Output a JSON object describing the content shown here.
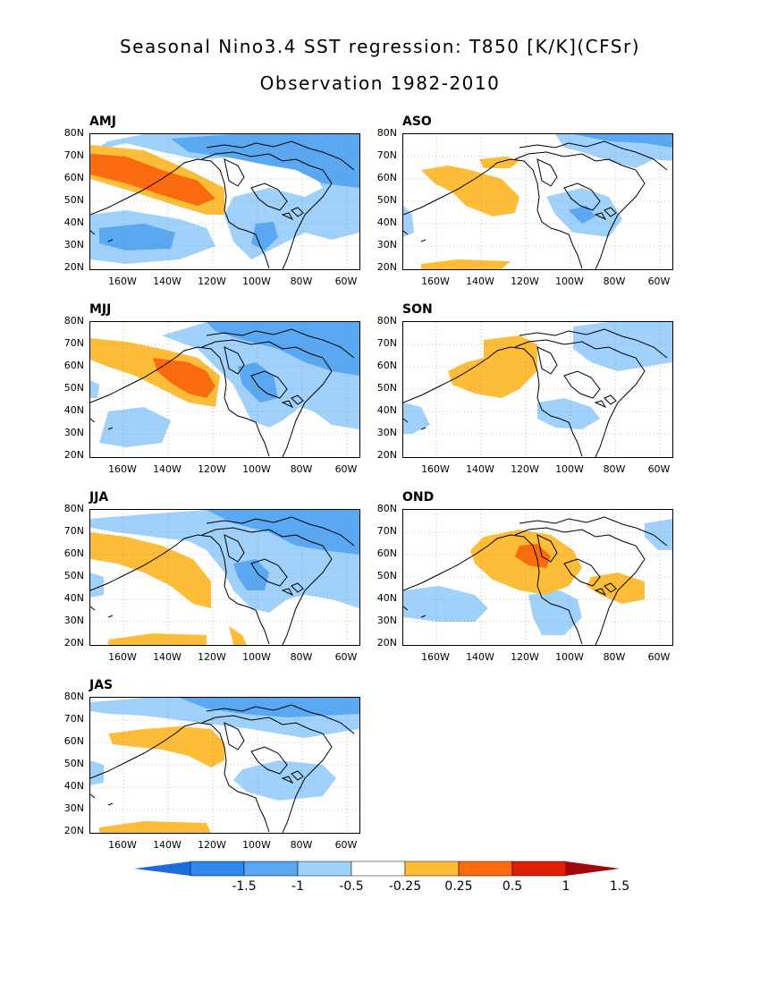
{
  "title_line1": "Seasonal Nino3.4 SST regression: T850 [K/K](CFSr)",
  "title_line2": "Observation 1982-2010",
  "lat_labels": [
    "80N",
    "70N",
    "60N",
    "50N",
    "40N",
    "30N",
    "20N"
  ],
  "lon_labels": [
    "160W",
    "140W",
    "120W",
    "100W",
    "80W",
    "60W"
  ],
  "panels": [
    {
      "id": "AMJ",
      "label": "AMJ"
    },
    {
      "id": "ASO",
      "label": "ASO"
    },
    {
      "id": "MJJ",
      "label": "MJJ"
    },
    {
      "id": "SON",
      "label": "SON"
    },
    {
      "id": "JJA",
      "label": "JJA"
    },
    {
      "id": "OND",
      "label": "OND"
    },
    {
      "id": "JAS",
      "label": "JAS"
    }
  ],
  "colorbar": {
    "labels": [
      "-1.5",
      "-1",
      "-0.5",
      "-0.25",
      "0.25",
      "0.5",
      "1",
      "1.5"
    ],
    "colors": [
      "#1e6be0",
      "#2f87ef",
      "#5aa7f2",
      "#9fd1fb",
      "#ffffff",
      "#fdbd38",
      "#fb6a0c",
      "#e01f07",
      "#a3070a"
    ],
    "under_color": "#1e6be0"
  }
}
